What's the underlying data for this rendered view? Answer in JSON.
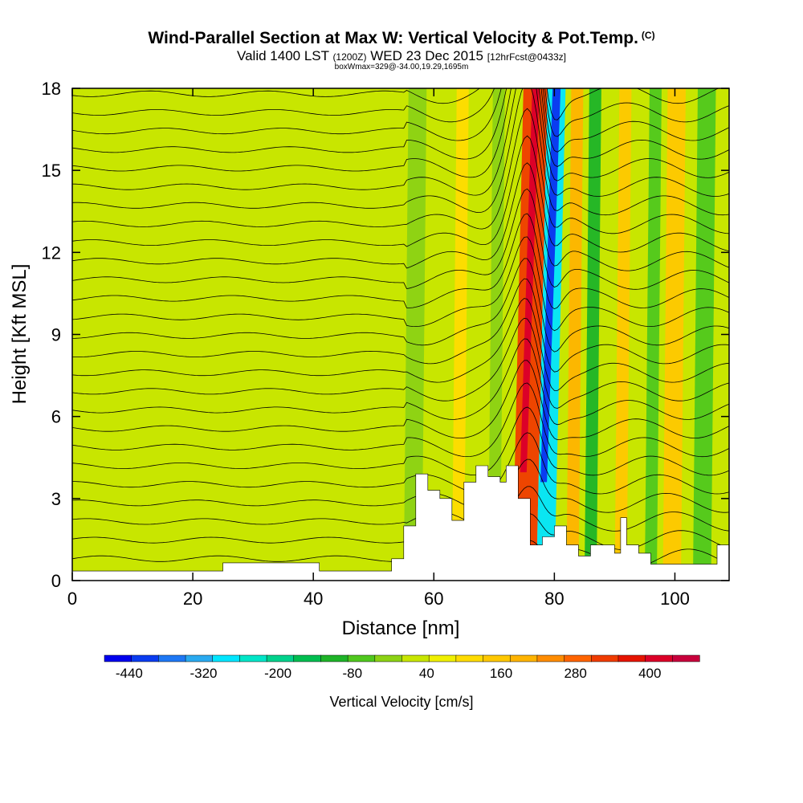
{
  "title": "Wind-Parallel Section at Max W: Vertical Velocity & Pot.Temp.",
  "title_badge": "(C)",
  "subtitle_valid": "Valid 1400 LST",
  "subtitle_utc": "(1200Z)",
  "subtitle_date": "WED 23 Dec 2015",
  "subtitle_fcst": "[12hrFcst@0433z]",
  "note": "boxWmax=329@-34.00,19.29,1695m",
  "chart_data": {
    "type": "heatmap",
    "xlabel": "Distance [nm]",
    "ylabel": "Height [Kft MSL]",
    "xlim": [
      0,
      109
    ],
    "ylim": [
      0,
      18
    ],
    "x_ticks": [
      0,
      20,
      40,
      60,
      80,
      100
    ],
    "y_ticks": [
      0,
      3,
      6,
      9,
      12,
      15,
      18
    ],
    "x_tick_labels": [
      "0",
      "20",
      "40",
      "60",
      "80",
      "100"
    ],
    "y_tick_labels": [
      "0",
      "3",
      "6",
      "9",
      "12",
      "15",
      "18"
    ],
    "colorbar": {
      "title": "Vertical Velocity [cm/s]",
      "labels": [
        "-440",
        "-320",
        "-200",
        "-80",
        "40",
        "160",
        "280",
        "400"
      ],
      "label_values": [
        -440,
        -320,
        -200,
        -80,
        40,
        160,
        280,
        400
      ],
      "range": [
        -480,
        480
      ],
      "colors": [
        "#0000ee",
        "#0a3cf0",
        "#1e78f5",
        "#2aaaf0",
        "#00e6ff",
        "#00e6c8",
        "#00d28c",
        "#00be50",
        "#1eb428",
        "#50c81e",
        "#8cd214",
        "#c8e600",
        "#f0f000",
        "#ffdc00",
        "#ffc800",
        "#ffb400",
        "#ff8c00",
        "#ff6400",
        "#f03c00",
        "#e61400",
        "#dc0028",
        "#c8003c"
      ]
    },
    "series": [
      {
        "name": "vertical_velocity_bands_cm_s",
        "bands": [
          {
            "x_start": 0,
            "x_end": 52,
            "w_cm_s": 20
          },
          {
            "x_start": 55,
            "x_end": 58,
            "w_cm_s": -30
          },
          {
            "x_start": 63,
            "x_end": 65,
            "w_cm_s": 120
          },
          {
            "x_start": 69,
            "x_end": 71,
            "w_cm_s": -40
          },
          {
            "x_start": 73,
            "x_end": 77,
            "w_cm_s": 329
          },
          {
            "x_start": 77,
            "x_end": 80,
            "w_cm_s": -300
          },
          {
            "x_start": 82,
            "x_end": 84,
            "w_cm_s": 180
          },
          {
            "x_start": 85,
            "x_end": 87,
            "w_cm_s": -90
          },
          {
            "x_start": 90,
            "x_end": 92,
            "w_cm_s": 140
          },
          {
            "x_start": 95,
            "x_end": 97,
            "w_cm_s": -80
          },
          {
            "x_start": 98,
            "x_end": 101,
            "w_cm_s": 150
          },
          {
            "x_start": 103,
            "x_end": 106,
            "w_cm_s": -80
          }
        ]
      },
      {
        "name": "terrain_kft",
        "x": [
          0,
          25,
          25,
          41,
          41,
          48,
          48,
          53,
          53,
          55,
          55,
          57,
          57,
          59,
          59,
          61,
          61,
          63,
          63,
          65,
          65,
          67,
          67,
          69,
          69,
          71,
          71,
          72,
          72,
          74,
          74,
          76,
          76,
          78,
          78,
          80,
          80,
          82,
          82,
          84,
          84,
          86,
          86,
          90,
          90,
          91,
          91,
          92,
          92,
          94,
          94,
          96,
          96,
          107,
          107,
          109
        ],
        "y": [
          0.35,
          0.35,
          0.65,
          0.65,
          0.35,
          0.35,
          0.35,
          0.35,
          0.8,
          0.8,
          2.0,
          2.0,
          3.9,
          3.9,
          3.3,
          3.3,
          3.0,
          3.0,
          2.2,
          2.2,
          3.6,
          3.6,
          4.2,
          4.2,
          3.8,
          3.8,
          3.6,
          3.6,
          4.2,
          4.2,
          3.0,
          3.0,
          1.3,
          1.3,
          1.6,
          1.6,
          2.0,
          2.0,
          1.3,
          1.3,
          0.9,
          0.9,
          1.3,
          1.3,
          1.0,
          1.0,
          2.3,
          2.3,
          1.3,
          1.3,
          1.0,
          1.0,
          0.6,
          0.6,
          1.3,
          1.3
        ]
      }
    ],
    "isentropes_note": "Potential temperature contours (deg C)"
  }
}
